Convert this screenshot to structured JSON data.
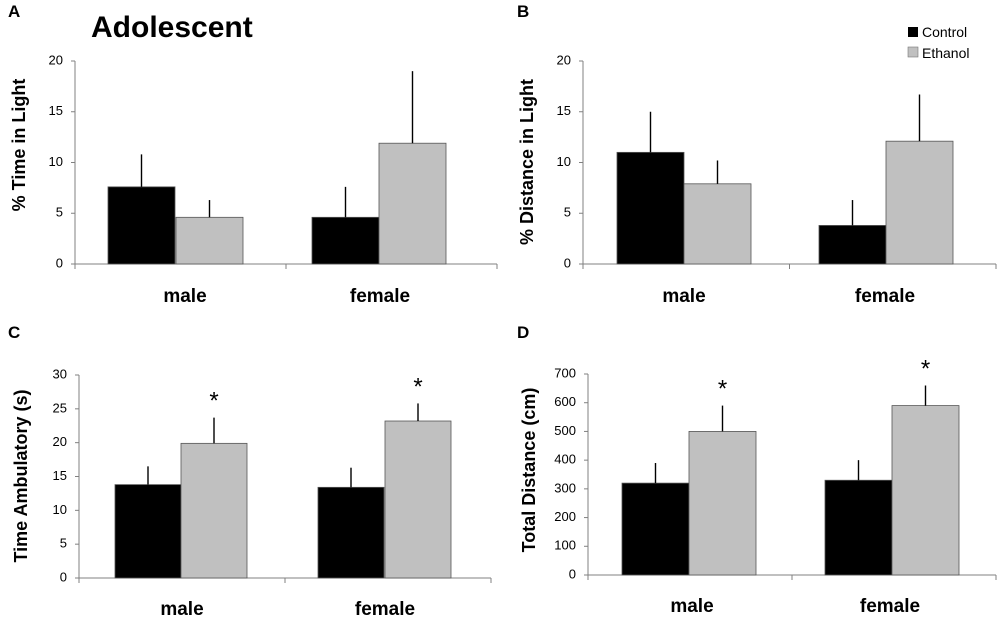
{
  "figure": {
    "title": "Adolescent",
    "legend": {
      "items": [
        "Control",
        "Ethanol"
      ]
    },
    "colors": {
      "control": "#000000",
      "ethanol": "#c0c0c0"
    }
  },
  "chart_data": [
    {
      "panel": "A",
      "type": "bar",
      "ylabel": "% Time in Light",
      "ylim": [
        0,
        20
      ],
      "yticks": [
        "0",
        "5",
        "10",
        "15",
        "20"
      ],
      "categories": [
        "male",
        "female"
      ],
      "series": [
        {
          "name": "Control",
          "values": [
            7.6,
            4.6
          ],
          "errors": [
            3.2,
            3.0
          ]
        },
        {
          "name": "Ethanol",
          "values": [
            4.6,
            11.9
          ],
          "errors": [
            1.7,
            7.1
          ]
        }
      ],
      "annotations": []
    },
    {
      "panel": "B",
      "type": "bar",
      "ylabel": "% Distance in Light",
      "ylim": [
        0,
        20
      ],
      "yticks": [
        "0",
        "5",
        "10",
        "15",
        "20"
      ],
      "categories": [
        "male",
        "female"
      ],
      "series": [
        {
          "name": "Control",
          "values": [
            11.0,
            3.8
          ],
          "errors": [
            4.0,
            2.5
          ]
        },
        {
          "name": "Ethanol",
          "values": [
            7.9,
            12.1
          ],
          "errors": [
            2.3,
            4.6
          ]
        }
      ],
      "annotations": []
    },
    {
      "panel": "C",
      "type": "bar",
      "ylabel": "Time Ambulatory (s)",
      "ylim": [
        0,
        30
      ],
      "yticks": [
        "0",
        "5",
        "10",
        "15",
        "20",
        "25",
        "30"
      ],
      "categories": [
        "male",
        "female"
      ],
      "series": [
        {
          "name": "Control",
          "values": [
            13.8,
            13.4
          ],
          "errors": [
            2.7,
            2.9
          ]
        },
        {
          "name": "Ethanol",
          "values": [
            19.9,
            23.2
          ],
          "errors": [
            3.8,
            2.6
          ]
        }
      ],
      "annotations": [
        {
          "text": "*",
          "category": "male",
          "series": "Ethanol"
        },
        {
          "text": "*",
          "category": "female",
          "series": "Ethanol"
        }
      ]
    },
    {
      "panel": "D",
      "type": "bar",
      "ylabel": "Total Distance (cm)",
      "ylim": [
        0,
        700
      ],
      "yticks": [
        "0",
        "100",
        "200",
        "300",
        "400",
        "500",
        "600",
        "700"
      ],
      "categories": [
        "male",
        "female"
      ],
      "series": [
        {
          "name": "Control",
          "values": [
            320,
            330
          ],
          "errors": [
            70,
            70
          ]
        },
        {
          "name": "Ethanol",
          "values": [
            500,
            590
          ],
          "errors": [
            90,
            70
          ]
        }
      ],
      "annotations": [
        {
          "text": "*",
          "category": "male",
          "series": "Ethanol"
        },
        {
          "text": "*",
          "category": "female",
          "series": "Ethanol"
        }
      ]
    }
  ]
}
